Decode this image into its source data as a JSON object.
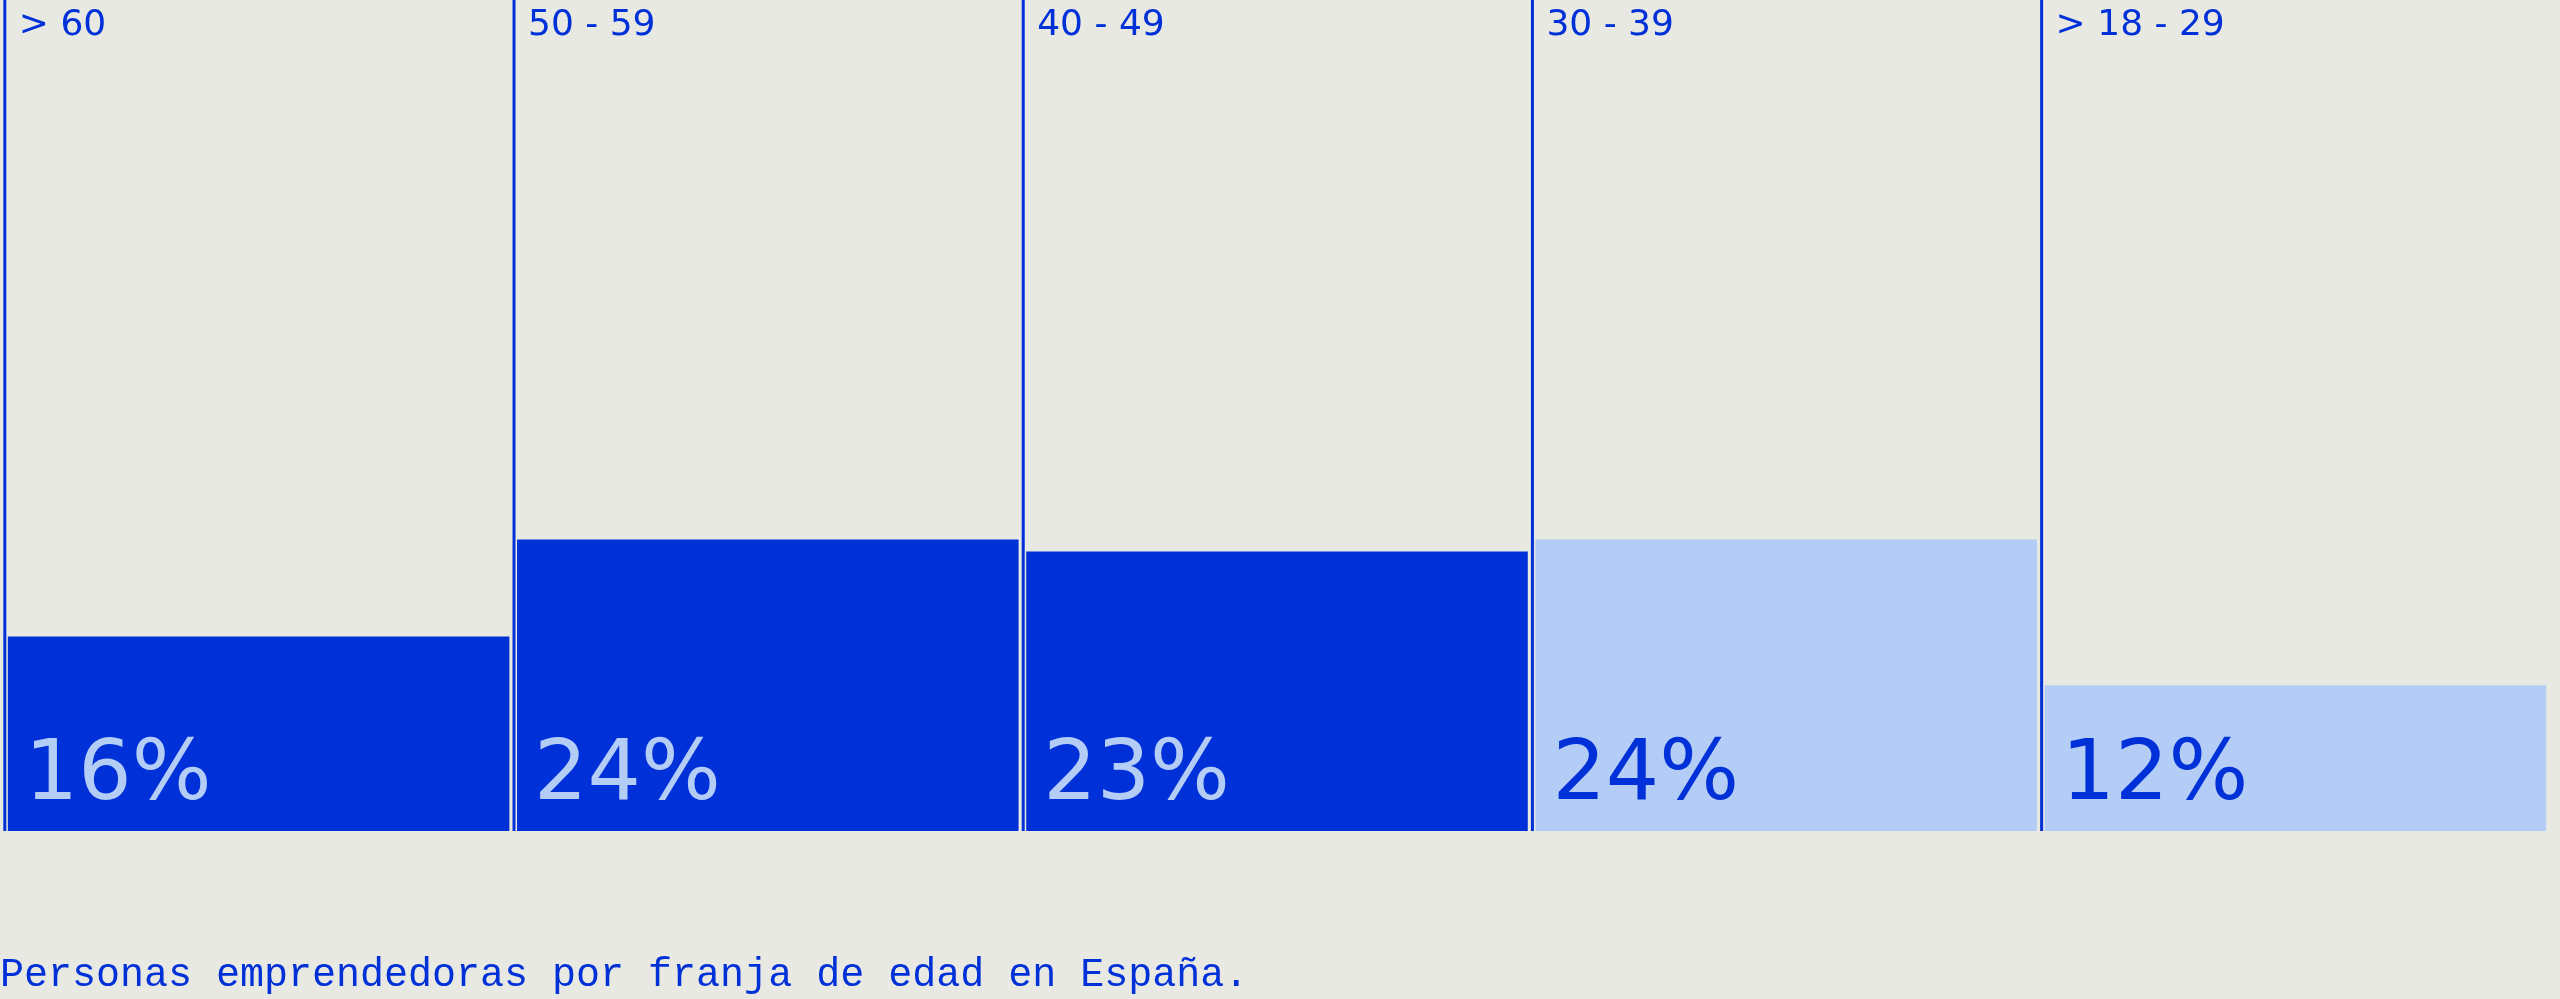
{
  "chart_data": {
    "type": "bar",
    "title": "Personas emprendedoras por franja de edad en España.",
    "categories": [
      "> 60",
      "50 - 59",
      "40 - 49",
      "30 - 39",
      "> 18 - 29"
    ],
    "values": [
      16,
      24,
      23,
      24,
      12
    ],
    "colors": [
      "#0030d8",
      "#0030d8",
      "#0030d8",
      "#b3cdf7",
      "#b3cdf7"
    ],
    "value_labels": [
      "16%",
      "24%",
      "23%",
      "24%",
      "12%"
    ],
    "ref_lines": [
      {
        "axis": "x",
        "value": "> 60",
        "color": "#0030d8"
      },
      {
        "axis": "x",
        "value": "50 - 59",
        "color": "#0030d8"
      },
      {
        "axis": "x",
        "value": "40 - 49",
        "color": "#0030d8"
      },
      {
        "axis": "x",
        "value": "30 - 39",
        "color": "#0030d8"
      },
      {
        "axis": "x",
        "value": "> 18 - 29",
        "color": "#0030d8"
      }
    ]
  }
}
